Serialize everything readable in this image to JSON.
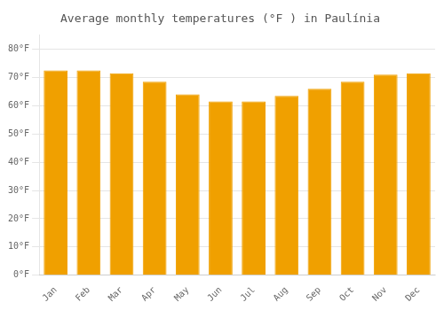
{
  "chart_data": {
    "type": "bar",
    "title": "Average monthly temperatures (°F ) in Paulínia",
    "categories": [
      "Jan",
      "Feb",
      "Mar",
      "Apr",
      "May",
      "Jun",
      "Jul",
      "Aug",
      "Sep",
      "Oct",
      "Nov",
      "Dec"
    ],
    "values": [
      72.5,
      72.5,
      71.5,
      68.5,
      64.0,
      61.5,
      61.5,
      63.5,
      66.0,
      68.5,
      71.0,
      71.5
    ],
    "color": "#F0A000",
    "ylim": [
      0,
      85
    ],
    "yticks": [
      {
        "value": 0,
        "label": "0°F"
      },
      {
        "value": 10,
        "label": "10°F"
      },
      {
        "value": 20,
        "label": "20°F"
      },
      {
        "value": 30,
        "label": "30°F"
      },
      {
        "value": 40,
        "label": "40°F"
      },
      {
        "value": 50,
        "label": "50°F"
      },
      {
        "value": 60,
        "label": "60°F"
      },
      {
        "value": 70,
        "label": "70°F"
      },
      {
        "value": 80,
        "label": "80°F"
      }
    ],
    "grid": true
  }
}
